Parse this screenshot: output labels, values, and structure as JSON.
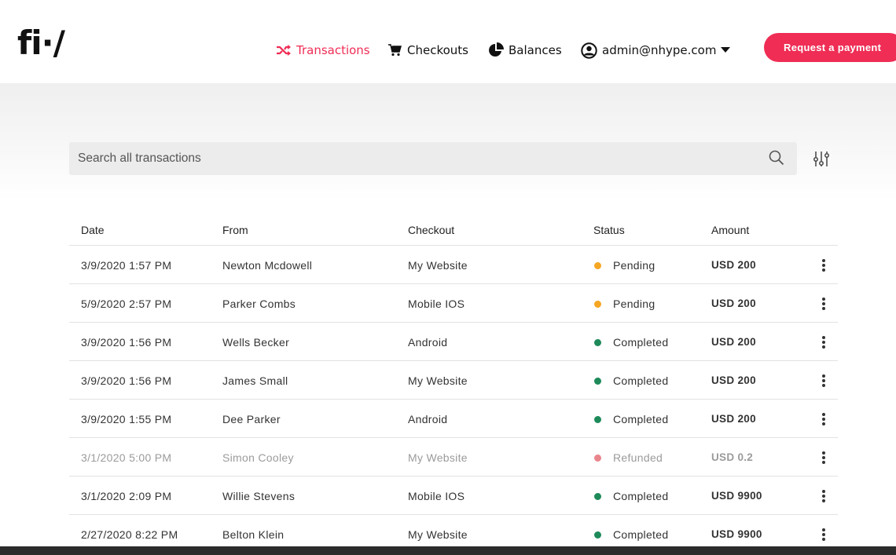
{
  "brand": {
    "logo_text": "fi·/"
  },
  "nav": {
    "items": [
      {
        "label": "Transactions",
        "icon": "shuffle-icon",
        "active": true
      },
      {
        "label": "Checkouts",
        "icon": "cart-icon",
        "active": false
      },
      {
        "label": "Balances",
        "icon": "pie-chart-icon",
        "active": false
      }
    ],
    "user": {
      "label": "admin@nhype.com",
      "icon": "user-circle-icon",
      "dropdown_icon": "caret-down-icon"
    }
  },
  "actions": {
    "request_payment_label": "Request a payment"
  },
  "search": {
    "placeholder": "Search all transactions",
    "value": ""
  },
  "table": {
    "columns": [
      "Date",
      "From",
      "Checkout",
      "Status",
      "Amount"
    ],
    "rows": [
      {
        "date": "3/9/2020 1:57 PM",
        "from": "Newton Mcdowell",
        "checkout": "My Website",
        "status": "Pending",
        "amount": "USD 200"
      },
      {
        "date": "5/9/2020 2:57 PM",
        "from": "Parker Combs",
        "checkout": "Mobile IOS",
        "status": "Pending",
        "amount": "USD 200"
      },
      {
        "date": "3/9/2020 1:56 PM",
        "from": "Wells Becker",
        "checkout": "Android",
        "status": "Completed",
        "amount": "USD 200"
      },
      {
        "date": "3/9/2020 1:56 PM",
        "from": "James Small",
        "checkout": "My Website",
        "status": "Completed",
        "amount": "USD 200"
      },
      {
        "date": "3/9/2020 1:55 PM",
        "from": "Dee Parker",
        "checkout": "Android",
        "status": "Completed",
        "amount": "USD 200"
      },
      {
        "date": "3/1/2020 5:00 PM",
        "from": "Simon Cooley",
        "checkout": "My Website",
        "status": "Refunded",
        "amount": "USD 0.2"
      },
      {
        "date": "3/1/2020 2:09 PM",
        "from": "Willie Stevens",
        "checkout": "Mobile IOS",
        "status": "Completed",
        "amount": "USD 9900"
      },
      {
        "date": "2/27/2020 8:22 PM",
        "from": "Belton Klein",
        "checkout": "My Website",
        "status": "Completed",
        "amount": "USD 9900"
      }
    ]
  },
  "colors": {
    "accent": "#ef2d55",
    "pending": "#f5a623",
    "completed": "#1e8a5a",
    "refunded": "#e8868c"
  }
}
